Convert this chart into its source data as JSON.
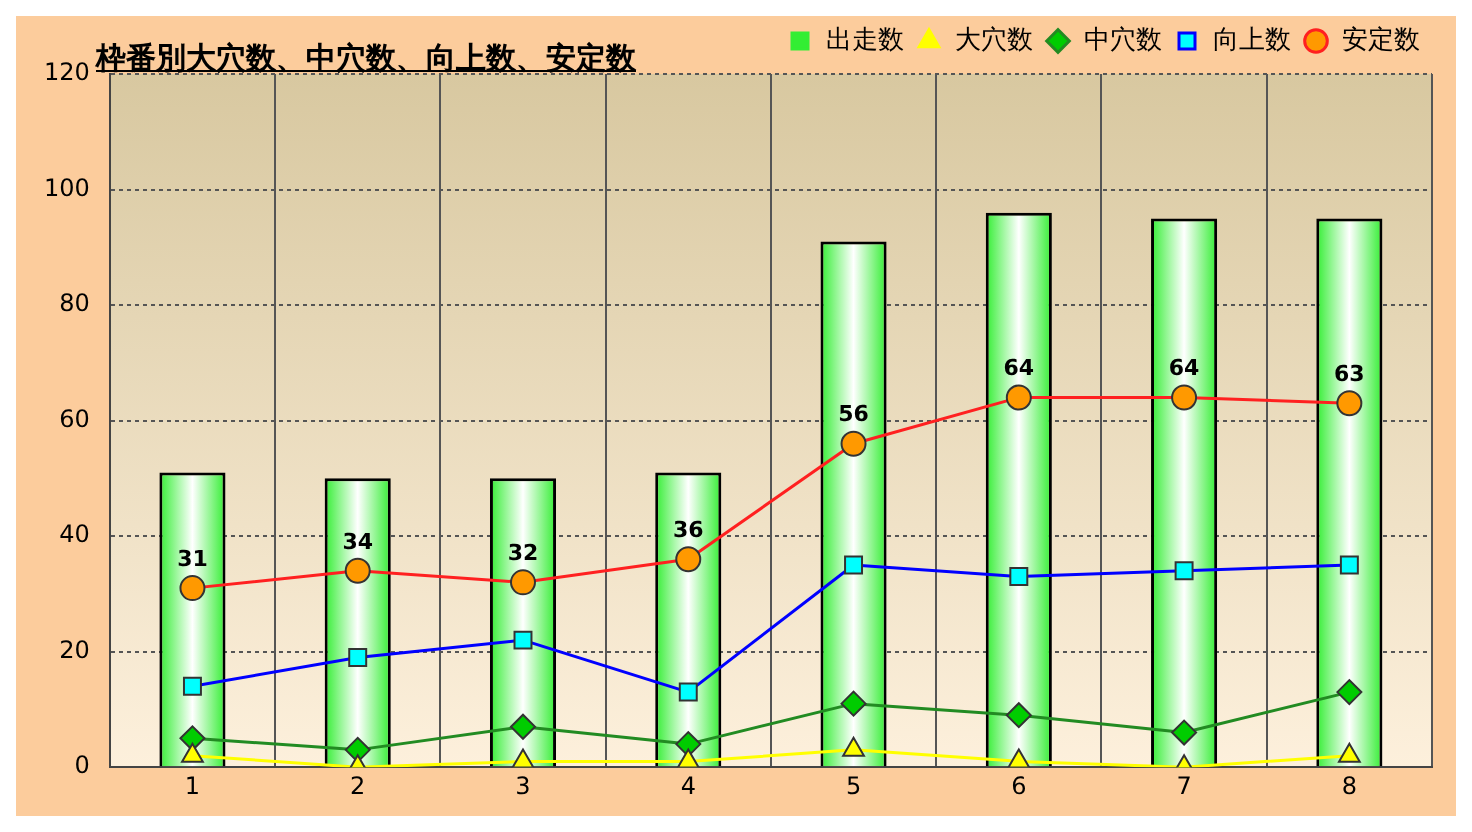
{
  "chart_data": {
    "type": "bar",
    "title": "枠番別大穴数、中穴数、向上数、安定数",
    "categories": [
      "1",
      "2",
      "3",
      "4",
      "5",
      "6",
      "7",
      "8"
    ],
    "series": [
      {
        "name": "出走数",
        "color": "#33ee33",
        "values": [
          51,
          50,
          50,
          51,
          91,
          96,
          95,
          95
        ]
      },
      {
        "name": "大穴数",
        "type": "line",
        "marker": "triangle",
        "color": "#ffff00",
        "colors": [
          "#ffff00",
          "#ffff00",
          "#ffff00",
          "#ffff00",
          "#ffff00",
          "#ffff00",
          "#ffff00",
          "#ffff00"
        ],
        "values": [
          2,
          0,
          1,
          1,
          3,
          1,
          0,
          2
        ]
      },
      {
        "name": "中穴数",
        "type": "line",
        "marker": "diamond",
        "color": "#228b22",
        "colors": [
          "#00cc00",
          "#00cc00",
          "#00cc00",
          "#00cc00",
          "#00cc00",
          "#00cc00",
          "#00cc00",
          "#00cc00"
        ],
        "values": [
          5,
          3,
          7,
          4,
          11,
          9,
          6,
          13
        ]
      },
      {
        "name": "向上数",
        "type": "line",
        "marker": "square",
        "color": "#0000ff",
        "colors": [
          "#00ffff",
          "#00ffff",
          "#00ffff",
          "#00ffff",
          "#00ffff",
          "#00ffff",
          "#00ffff",
          "#00ffff"
        ],
        "values": [
          14,
          19,
          22,
          13,
          35,
          33,
          34,
          35
        ]
      },
      {
        "name": "安定数",
        "type": "line",
        "marker": "circle",
        "color": "#ff2020",
        "colors": [
          "#ff9900",
          "#ff9900",
          "#ff9900",
          "#ff9900",
          "#ff9900",
          "#ff9900",
          "#ff9900",
          "#ff9900"
        ],
        "values": [
          31,
          34,
          32,
          36,
          56,
          64,
          64,
          63
        ],
        "value_labels": [
          "31",
          "34",
          "32",
          "36",
          "56",
          "64",
          "64",
          "63"
        ]
      }
    ],
    "ylim": [
      0,
      120
    ],
    "yticks": [
      0,
      20,
      40,
      60,
      80,
      100,
      120
    ],
    "grid": true,
    "legend": "top right"
  }
}
